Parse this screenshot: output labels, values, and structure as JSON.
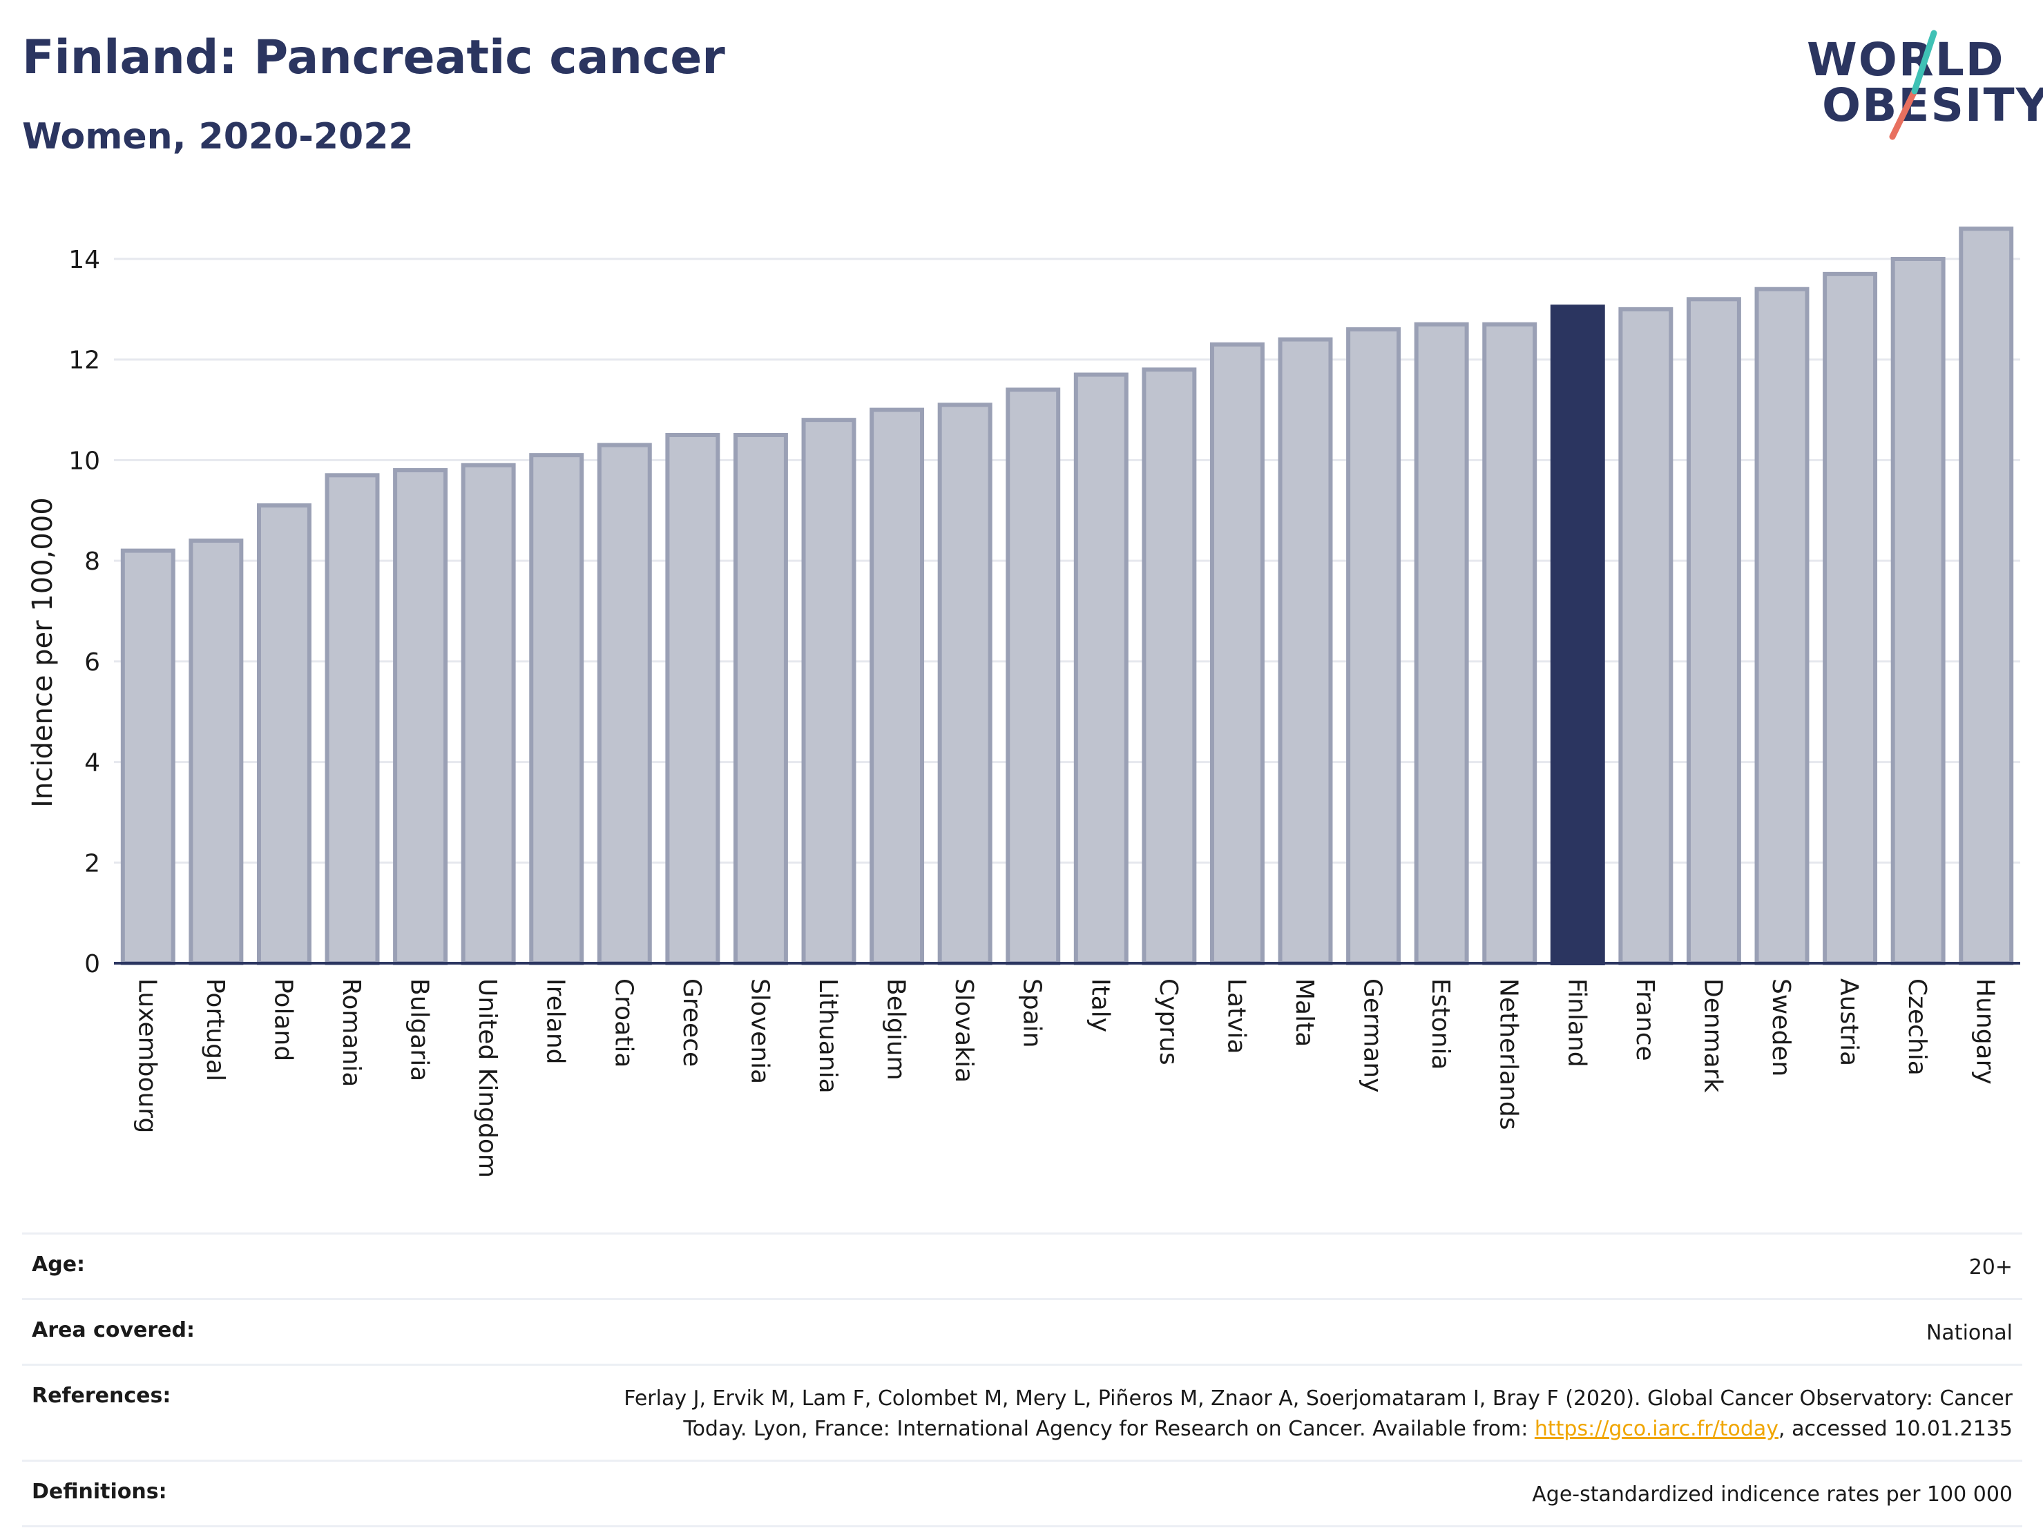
{
  "header": {
    "title": "Finland: Pancreatic cancer",
    "subtitle": "Women, 2020-2022"
  },
  "logo": {
    "line1": "WORLD",
    "line2": "OBESITY",
    "colors": [
      "#2b3560",
      "#e8705f",
      "#3fc1b5"
    ]
  },
  "chart_data": {
    "type": "bar",
    "ylabel": "Incidence per 100,000",
    "xlabel": "",
    "ylim": [
      0,
      15
    ],
    "yticks": [
      0,
      2,
      4,
      6,
      8,
      10,
      12,
      14
    ],
    "grid": true,
    "highlight": "Finland",
    "categories": [
      "Luxembourg",
      "Portugal",
      "Poland",
      "Romania",
      "Bulgaria",
      "United Kingdom",
      "Ireland",
      "Croatia",
      "Greece",
      "Slovenia",
      "Lithuania",
      "Belgium",
      "Slovakia",
      "Spain",
      "Italy",
      "Cyprus",
      "Latvia",
      "Malta",
      "Germany",
      "Estonia",
      "Netherlands",
      "Finland",
      "France",
      "Denmark",
      "Sweden",
      "Austria",
      "Czechia",
      "Hungary"
    ],
    "values": [
      8.2,
      8.4,
      9.1,
      9.7,
      9.8,
      9.9,
      10.1,
      10.3,
      10.5,
      10.5,
      10.8,
      11.0,
      11.1,
      11.4,
      11.7,
      11.8,
      12.3,
      12.4,
      12.6,
      12.7,
      12.7,
      13.05,
      13.0,
      13.2,
      13.4,
      13.7,
      14.0,
      14.6
    ],
    "colors": {
      "bar": "#bfc3cf",
      "bar_border": "#9aa0b5",
      "highlight": "#2b3560",
      "axis": "#2b3560",
      "grid": "#e6e8ee"
    }
  },
  "footer": {
    "age_label": "Age:",
    "age_value": "20+",
    "area_label": "Area covered:",
    "area_value": "National",
    "references_label": "References:",
    "references_text": "Ferlay J, Ervik M, Lam F, Colombet M, Mery L, Piñeros M, Znaor A, Soerjomataram I, Bray F (2020). Global Cancer Observatory: Cancer Today. Lyon, France: International Agency for Research on Cancer. Available from: ",
    "references_link": "https://gco.iarc.fr/today",
    "references_suffix": ", accessed 10.01.2135",
    "definitions_label": "Definitions:",
    "definitions_value": "Age-standardized indicence rates per 100 000"
  }
}
